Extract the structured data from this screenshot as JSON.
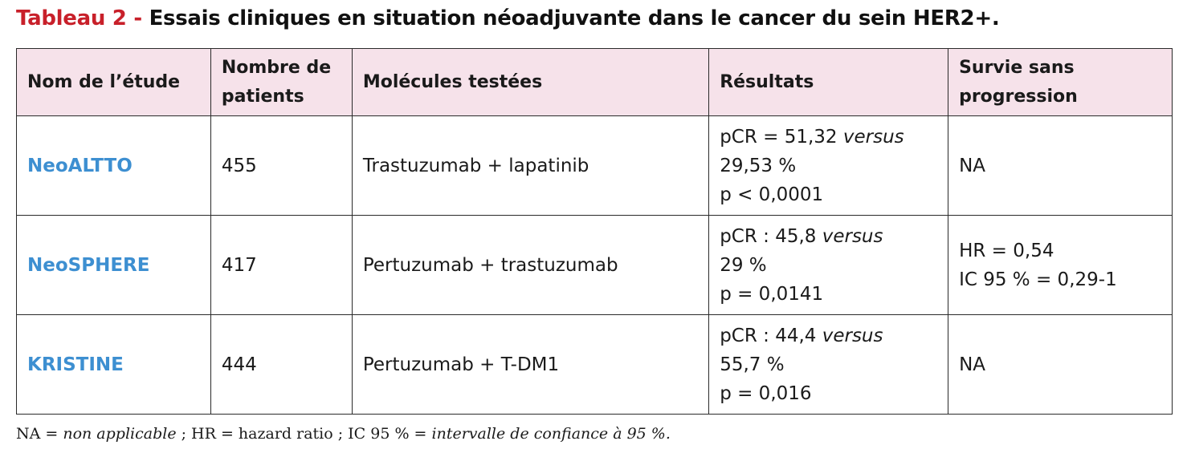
{
  "caption": {
    "label": "Tableau 2 -",
    "text": "Essais cliniques en situation néoadjuvante dans le cancer du sein HER2+."
  },
  "table": {
    "headers": {
      "study": "Nom de l’étude",
      "patients_1": "Nombre de",
      "patients_2": "patients",
      "molecules": "Molécules testées",
      "results": "Résultats",
      "pfs_1": "Survie sans",
      "pfs_2": "progression"
    },
    "rows": [
      {
        "study": "NeoALTTO",
        "patients": "455",
        "molecules": "Trastuzumab + lapatinib",
        "result_a": "pCR = 51,32 ",
        "result_versus": "versus",
        "result_b": "29,53 %",
        "result_c": "p < 0,0001",
        "pfs_1": "NA",
        "pfs_2": ""
      },
      {
        "study": "NeoSPHERE",
        "patients": "417",
        "molecules": "Pertuzumab + trastuzumab",
        "result_a": "pCR : 45,8 ",
        "result_versus": "versus",
        "result_b": "29 %",
        "result_c": "p = 0,0141",
        "pfs_1": "HR = 0,54",
        "pfs_2": "IC 95 % = 0,29-1"
      },
      {
        "study": "KRISTINE",
        "patients": "444",
        "molecules": "Pertuzumab + T-DM1",
        "result_a": "pCR : 44,4 ",
        "result_versus": "versus",
        "result_b": "55,7 %",
        "result_c": "p = 0,016",
        "pfs_1": "NA",
        "pfs_2": ""
      }
    ]
  },
  "footnote": {
    "na_key": "NA = ",
    "na_value": "non applicable",
    "hr_text": " ; HR = hazard ratio ; IC 95 % = ",
    "ic_value": "intervalle de confiance à 95 %."
  },
  "colors": {
    "caption_label": "#c8202a",
    "header_bg": "#f6e2ea",
    "study_name": "#3d8fd1",
    "border": "#2a2a2a"
  }
}
